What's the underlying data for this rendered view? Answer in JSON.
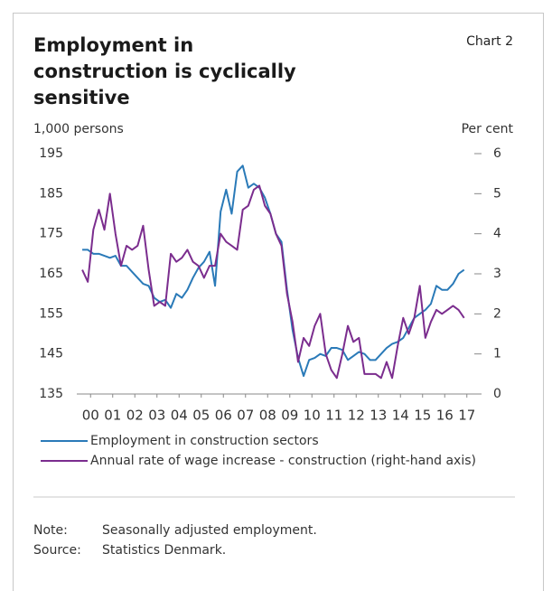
{
  "chart_data": {
    "type": "line",
    "title": "Employment in construction is cyclically sensitive",
    "chart_label": "Chart 2",
    "y_label": "1,000 persons",
    "y2_label": "Per cent",
    "x": [
      2000.125,
      2000.375,
      2000.625,
      2000.875,
      2001.125,
      2001.375,
      2001.625,
      2001.875,
      2002.125,
      2002.375,
      2002.625,
      2002.875,
      2003.125,
      2003.375,
      2003.625,
      2003.875,
      2004.125,
      2004.375,
      2004.625,
      2004.875,
      2005.125,
      2005.375,
      2005.625,
      2005.875,
      2006.125,
      2006.375,
      2006.625,
      2006.875,
      2007.125,
      2007.375,
      2007.625,
      2007.875,
      2008.125,
      2008.375,
      2008.625,
      2008.875,
      2009.125,
      2009.375,
      2009.625,
      2009.875,
      2010.125,
      2010.375,
      2010.625,
      2010.875,
      2011.125,
      2011.375,
      2011.625,
      2011.875,
      2012.125,
      2012.375,
      2012.625,
      2012.875,
      2013.125,
      2013.375,
      2013.625,
      2013.875,
      2014.125,
      2014.375,
      2014.625,
      2014.875,
      2015.125,
      2015.375,
      2015.625,
      2015.875,
      2016.125,
      2016.375,
      2016.625,
      2016.875,
      2017.125,
      2017.375
    ],
    "series": [
      {
        "name": "Employment in construction sectors",
        "color": "#2a7ab8",
        "values": [
          171,
          171,
          170,
          170,
          169.5,
          169,
          169.5,
          167,
          167,
          165.5,
          164,
          162.5,
          162,
          159,
          158,
          158.5,
          156.5,
          160,
          159,
          161,
          164,
          166.5,
          168,
          170.5,
          162,
          180.5,
          186,
          180,
          190.5,
          192,
          186.5,
          187.5,
          186.5,
          184,
          180,
          175,
          173,
          161,
          151,
          144,
          139.5,
          143.5,
          144,
          145,
          144.5,
          146.5,
          146.5,
          146,
          143.5,
          144.5,
          145.5,
          145,
          143.5,
          143.5,
          145,
          146.5,
          147.5,
          148,
          149,
          151.5,
          154,
          155,
          156,
          157.5,
          162,
          161,
          161,
          162.5,
          165,
          166
        ]
      },
      {
        "name": "Annual rate of wage increase - construction (right-hand axis)",
        "color": "#7b2d8e",
        "axis": "y2",
        "values": [
          3.1,
          2.8,
          4.1,
          4.6,
          4.1,
          5.0,
          4.0,
          3.2,
          3.7,
          3.6,
          3.7,
          4.2,
          3.1,
          2.2,
          2.3,
          2.2,
          3.5,
          3.3,
          3.4,
          3.6,
          3.3,
          3.2,
          2.9,
          3.2,
          3.2,
          4.0,
          3.8,
          3.7,
          3.6,
          4.6,
          4.7,
          5.1,
          5.2,
          4.7,
          4.5,
          4.0,
          3.7,
          2.5,
          1.8,
          0.8,
          1.4,
          1.2,
          1.7,
          2.0,
          1.0,
          0.6,
          0.4,
          1.0,
          1.7,
          1.3,
          1.4,
          0.5,
          0.5,
          0.5,
          0.4,
          0.8,
          0.4,
          1.2,
          1.9,
          1.5,
          1.9,
          2.7,
          1.4,
          1.8,
          2.1,
          2.0,
          2.1,
          2.2,
          2.1,
          1.9
        ]
      }
    ],
    "xlim": [
      2000,
      2018
    ],
    "xticks": [
      {
        "value": 2000.5,
        "label": "00"
      },
      {
        "value": 2001.5,
        "label": "01"
      },
      {
        "value": 2002.5,
        "label": "02"
      },
      {
        "value": 2003.5,
        "label": "03"
      },
      {
        "value": 2004.5,
        "label": "04"
      },
      {
        "value": 2005.5,
        "label": "05"
      },
      {
        "value": 2006.5,
        "label": "06"
      },
      {
        "value": 2007.5,
        "label": "07"
      },
      {
        "value": 2008.5,
        "label": "08"
      },
      {
        "value": 2009.5,
        "label": "09"
      },
      {
        "value": 2010.5,
        "label": "10"
      },
      {
        "value": 2011.5,
        "label": "11"
      },
      {
        "value": 2012.5,
        "label": "12"
      },
      {
        "value": 2013.5,
        "label": "13"
      },
      {
        "value": 2014.5,
        "label": "14"
      },
      {
        "value": 2015.5,
        "label": "15"
      },
      {
        "value": 2016.5,
        "label": "16"
      },
      {
        "value": 2017.5,
        "label": "17"
      }
    ],
    "ylim": [
      135,
      195
    ],
    "yticks": [
      135,
      145,
      155,
      165,
      175,
      185,
      195
    ],
    "y2lim": [
      0,
      6
    ],
    "y2ticks": [
      0,
      1,
      2,
      3,
      4,
      5,
      6
    ],
    "notes": [
      {
        "label": "Note:",
        "text": "Seasonally adjusted employment."
      },
      {
        "label": "Source:",
        "text": "Statistics Denmark."
      }
    ]
  }
}
